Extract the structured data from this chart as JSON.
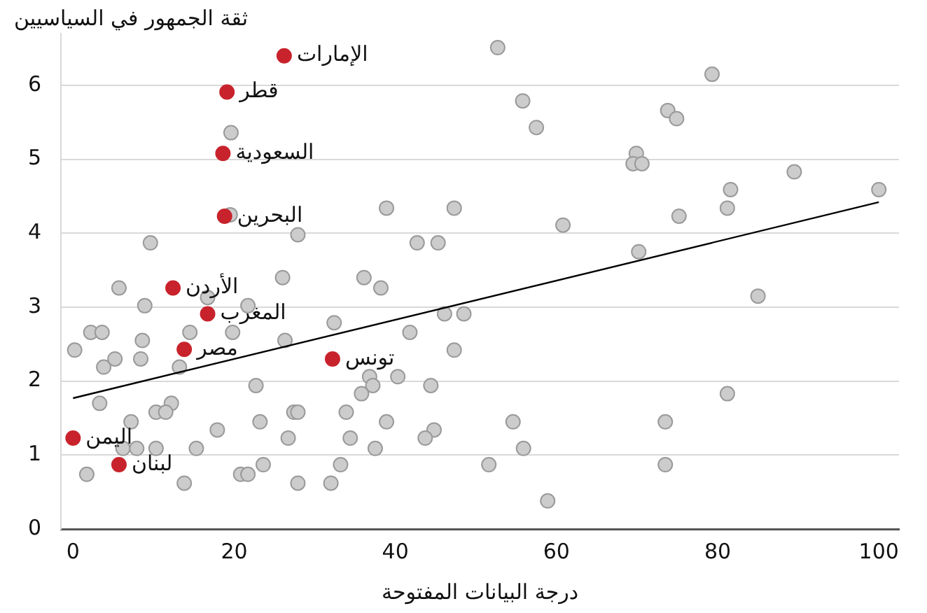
{
  "chart_data": {
    "type": "scatter",
    "xlabel": "درجة البيانات المفتوحة",
    "ylabel": "ثقة الجمهور في السياسيين",
    "xlim": [
      -1.5,
      102.5
    ],
    "xticks": [
      0,
      20,
      40,
      60,
      80,
      100
    ],
    "ylim": [
      0,
      6.7
    ],
    "yticks": [
      0,
      1,
      2,
      3,
      4,
      5,
      6
    ],
    "grid": "y",
    "legend": false,
    "marker": "circle",
    "series": [
      {
        "color": "#cccccc",
        "x": [
          19.6,
          38.9,
          47.3,
          27.9,
          9.6,
          42.7,
          45.3,
          19.5,
          26,
          36.1,
          38.2,
          5.7,
          16.7,
          8.9,
          21.7,
          0.2,
          2.2,
          3.6,
          8.6,
          14.5,
          19.8,
          26.3,
          32.4,
          3.8,
          5.2,
          8.4,
          13.2,
          46.1,
          48.5,
          41.8,
          47.3,
          36.8,
          37.2,
          40.3,
          44.4,
          22.7,
          35.8,
          3.3,
          12.2,
          10.3,
          11.5,
          7.2,
          17.9,
          23.2,
          27.4,
          27.9,
          33.9,
          38.9,
          44.8,
          43.7,
          26.7,
          34.4,
          6.2,
          7.9,
          10.3,
          15.3,
          37.5,
          1.7,
          20.8,
          21.7,
          23.6,
          33.2,
          13.8,
          27.9,
          32,
          52.7,
          79.3,
          55.8,
          57.5,
          73.8,
          74.9,
          69.9,
          69.5,
          70.6,
          89.5,
          81.6,
          100,
          81.2,
          75.2,
          60.8,
          70.2,
          85,
          81.2,
          54.6,
          73.5,
          55.9,
          51.6,
          73.5,
          58.9
        ],
        "values": [
          5.36,
          4.34,
          4.34,
          3.98,
          3.87,
          3.87,
          3.87,
          4.25,
          3.4,
          3.4,
          3.26,
          3.26,
          3.13,
          3.02,
          3.02,
          2.42,
          2.66,
          2.66,
          2.55,
          2.66,
          2.66,
          2.55,
          2.79,
          2.19,
          2.3,
          2.3,
          2.19,
          2.91,
          2.91,
          2.66,
          2.42,
          2.06,
          1.94,
          2.06,
          1.94,
          1.94,
          1.83,
          1.7,
          1.7,
          1.58,
          1.58,
          1.45,
          1.34,
          1.45,
          1.58,
          1.58,
          1.58,
          1.45,
          1.34,
          1.23,
          1.23,
          1.23,
          1.09,
          1.09,
          1.09,
          1.09,
          1.09,
          0.74,
          0.74,
          0.74,
          0.87,
          0.87,
          0.62,
          0.62,
          0.62,
          6.51,
          6.15,
          5.79,
          5.43,
          5.66,
          5.55,
          5.08,
          4.94,
          4.94,
          4.83,
          4.59,
          4.59,
          4.34,
          4.23,
          4.11,
          3.75,
          3.15,
          1.83,
          1.45,
          1.45,
          1.09,
          0.87,
          0.87,
          0.38
        ]
      },
      {
        "color": "#c8232c",
        "x": [
          26.2,
          19.1,
          18.6,
          18.8,
          12.4,
          16.7,
          13.8,
          32.2,
          0,
          5.7
        ],
        "values": [
          6.4,
          5.91,
          5.08,
          4.23,
          3.26,
          2.91,
          2.43,
          2.3,
          1.23,
          0.87
        ]
      },
      {
        "type": "line",
        "color": "#000000",
        "marker": "none",
        "x": [
          0,
          100
        ],
        "values": [
          1.77,
          4.42
        ]
      }
    ],
    "annotations": [
      {
        "text": "الإمارات",
        "x": 26.2,
        "y": 6.4
      },
      {
        "text": "قطر",
        "x": 19.1,
        "y": 5.91
      },
      {
        "text": "السعودية",
        "x": 18.6,
        "y": 5.08
      },
      {
        "text": "البحرين",
        "x": 18.8,
        "y": 4.23
      },
      {
        "text": "الأردن",
        "x": 12.4,
        "y": 3.26
      },
      {
        "text": "المغرب",
        "x": 16.7,
        "y": 2.91
      },
      {
        "text": "مصر",
        "x": 13.8,
        "y": 2.43
      },
      {
        "text": "تونس",
        "x": 32.2,
        "y": 2.3
      },
      {
        "text": "اليمن",
        "x": 0,
        "y": 1.23
      },
      {
        "text": "لبنان",
        "x": 5.7,
        "y": 0.87
      }
    ]
  }
}
